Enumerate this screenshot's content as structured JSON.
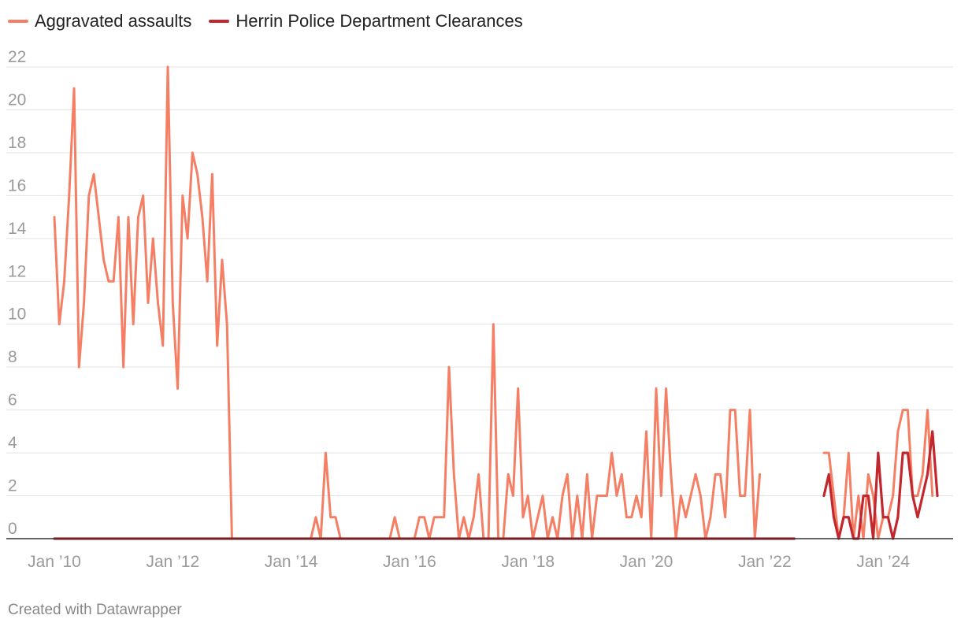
{
  "footer": "Created with Datawrapper",
  "chart_data": {
    "type": "line",
    "title": "",
    "xlabel": "",
    "ylabel": "",
    "ylim": [
      0,
      22
    ],
    "xlim": [
      "2010-01",
      "2024-12"
    ],
    "grid": true,
    "legend_position": "top-left",
    "y_ticks": [
      "0",
      "2",
      "4",
      "6",
      "8",
      "10",
      "12",
      "14",
      "16",
      "18",
      "20",
      "22"
    ],
    "x_ticks": [
      {
        "date": "2010-01",
        "label": "Jan ’10"
      },
      {
        "date": "2012-01",
        "label": "Jan ’12"
      },
      {
        "date": "2014-01",
        "label": "Jan ’14"
      },
      {
        "date": "2016-01",
        "label": "Jan ’16"
      },
      {
        "date": "2018-01",
        "label": "Jan ’18"
      },
      {
        "date": "2020-01",
        "label": "Jan ’20"
      },
      {
        "date": "2022-01",
        "label": "Jan ’22"
      },
      {
        "date": "2024-01",
        "label": "Jan ’24"
      }
    ],
    "series": [
      {
        "name": "Aggravated assaults",
        "color": "#f47f64",
        "segments": [
          {
            "start": "2010-01",
            "values": [
              15,
              10,
              12,
              16,
              21,
              8,
              11,
              16,
              17,
              15,
              13,
              12,
              12,
              15,
              8,
              15,
              10,
              15,
              16,
              11,
              14,
              11,
              9,
              22,
              11,
              7,
              16,
              14,
              18,
              17,
              15,
              12,
              17,
              9,
              13,
              10,
              0,
              0,
              0,
              0,
              0,
              0,
              0,
              0,
              0,
              0,
              0,
              0,
              0,
              0,
              0,
              0,
              0,
              1,
              0,
              4,
              1,
              1,
              0,
              0,
              0,
              0,
              0,
              0,
              0,
              0,
              0,
              0,
              0,
              1,
              0,
              0,
              0,
              0,
              1,
              1,
              0,
              1,
              1,
              1,
              8,
              3,
              0,
              1,
              0,
              1,
              3,
              0,
              0,
              10,
              0,
              0,
              3,
              2,
              7,
              1,
              2,
              0,
              1,
              2,
              0,
              1,
              0,
              2,
              3,
              0,
              2,
              0,
              3,
              0,
              2,
              2,
              2,
              4,
              2,
              3,
              1,
              1,
              2,
              1,
              5,
              0,
              7,
              2,
              7,
              3,
              0,
              2,
              1,
              2,
              3,
              2,
              0,
              1,
              3,
              3,
              1,
              6,
              6,
              2,
              2,
              6,
              0,
              3
            ]
          },
          {
            "start": "2023-01",
            "values": [
              4,
              4,
              2,
              0,
              1,
              4,
              0,
              2,
              0,
              3,
              2,
              0,
              1,
              1,
              2,
              5,
              6,
              6,
              2,
              2,
              3,
              6,
              2
            ]
          }
        ]
      },
      {
        "name": "Herrin Police Department Clearances",
        "color": "#c1272d",
        "segments": [
          {
            "start": "2010-01",
            "values": [
              0,
              0,
              0,
              0,
              0,
              0,
              0,
              0,
              0,
              0,
              0,
              0,
              0,
              0,
              0,
              0,
              0,
              0,
              0,
              0,
              0,
              0,
              0,
              0,
              0,
              0,
              0,
              0,
              0,
              0,
              0,
              0,
              0,
              0,
              0,
              0,
              0,
              0,
              0,
              0,
              0,
              0,
              0,
              0,
              0,
              0,
              0,
              0,
              0,
              0,
              0,
              0,
              0,
              0,
              0,
              0,
              0,
              0,
              0,
              0,
              0,
              0,
              0,
              0,
              0,
              0,
              0,
              0,
              0,
              0,
              0,
              0,
              0,
              0,
              0,
              0,
              0,
              0,
              0,
              0,
              0,
              0,
              0,
              0,
              0,
              0,
              0,
              0,
              0,
              0,
              0,
              0,
              0,
              0,
              0,
              0,
              0,
              0,
              0,
              0,
              0,
              0,
              0,
              0,
              0,
              0,
              0,
              0,
              0,
              0,
              0,
              0,
              0,
              0,
              0,
              0,
              0,
              0,
              0,
              0,
              0,
              0,
              0,
              0,
              0,
              0,
              0,
              0,
              0,
              0,
              0,
              0,
              0,
              0,
              0,
              0,
              0,
              0,
              0,
              0,
              0,
              0,
              0,
              0,
              0,
              0,
              0,
              0,
              0,
              0,
              0
            ]
          },
          {
            "start": "2023-01",
            "values": [
              2,
              3,
              1,
              0,
              1,
              1,
              0,
              0,
              2,
              2,
              0,
              4,
              1,
              1,
              0,
              1,
              4,
              4,
              2,
              1,
              2,
              3,
              5,
              2
            ]
          }
        ]
      }
    ]
  }
}
